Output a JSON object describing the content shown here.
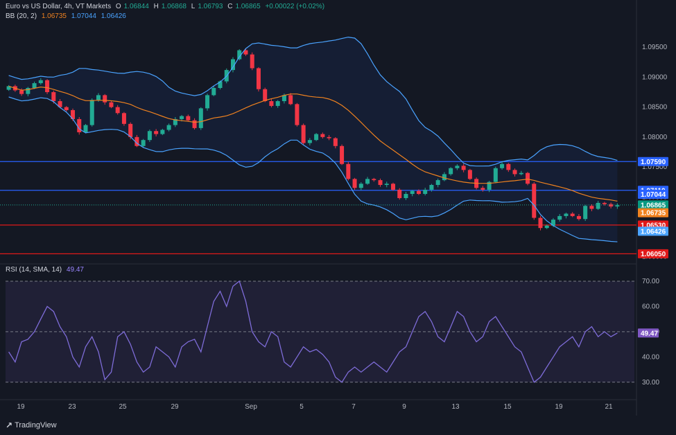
{
  "header": {
    "symbol": "Euro vs US Dollar, 4h, VT Markets",
    "open_label": "O",
    "open": "1.06844",
    "high_label": "H",
    "high": "1.06868",
    "low_label": "L",
    "low": "1.06793",
    "close_label": "C",
    "close": "1.06865",
    "change": "+0.00022 (+0.02%)"
  },
  "bb_legend": {
    "name": "BB (20, 2)",
    "mid": "1.06735",
    "upper": "1.07044",
    "lower": "1.06426"
  },
  "rsi_legend": {
    "name": "RSI (14, SMA, 14)",
    "value": "49.47"
  },
  "footer": {
    "brand": "TradingView"
  },
  "colors": {
    "up": "#22ab94",
    "down": "#f23645",
    "bb_mid": "#f0821f",
    "bb_band": "#4aa3ff",
    "rsi_line": "#7e6cd8",
    "hline_blue": "#2962ff",
    "hline_red": "#e01919"
  },
  "chart_data": [
    {
      "type": "candlestick",
      "title": "Euro vs US Dollar, 4h, VT Markets",
      "x_ticks": [
        "19",
        "23",
        "25",
        "29",
        "Sep",
        "5",
        "7",
        "9",
        "13",
        "15",
        "19",
        "21"
      ],
      "y_ticks": [
        "1.09500",
        "1.09000",
        "1.08500",
        "1.08000",
        "1.07500",
        "1.07000",
        "1.06500",
        "1.06000"
      ],
      "ylim": [
        1.0595,
        1.0985
      ],
      "close_path": [
        1.0885,
        1.0878,
        1.0872,
        1.0882,
        1.089,
        1.0895,
        1.0875,
        1.086,
        1.085,
        1.0845,
        1.083,
        1.0808,
        1.082,
        1.0862,
        1.087,
        1.0858,
        1.085,
        1.084,
        1.0822,
        1.08,
        1.0785,
        1.0795,
        1.081,
        1.0805,
        1.0812,
        1.082,
        1.083,
        1.0835,
        1.0828,
        1.0815,
        1.0848,
        1.087,
        1.0882,
        1.0893,
        1.0912,
        1.093,
        1.0945,
        1.0938,
        1.0915,
        1.088,
        1.086,
        1.0852,
        1.086,
        1.087,
        1.0855,
        1.082,
        1.079,
        1.0795,
        1.0805,
        1.08,
        1.0798,
        1.0785,
        1.0755,
        1.073,
        1.0715,
        1.0722,
        1.073,
        1.0728,
        1.072,
        1.0722,
        1.0712,
        1.0698,
        1.0705,
        1.071,
        1.0705,
        1.0712,
        1.072,
        1.0728,
        1.0738,
        1.0748,
        1.0752,
        1.0745,
        1.073,
        1.0715,
        1.0712,
        1.0725,
        1.0748,
        1.0755,
        1.0745,
        1.0738,
        1.074,
        1.0722,
        1.0665,
        1.0648,
        1.0652,
        1.0662,
        1.0668,
        1.0672,
        1.0668,
        1.0663,
        1.0685,
        1.068,
        1.069,
        1.0688,
        1.0684,
        1.0686
      ],
      "horizontal_levels": [
        {
          "price": "1.07590",
          "color": "hline_blue"
        },
        {
          "price": "1.07110",
          "color": "hline_blue"
        },
        {
          "price": "1.06530",
          "color": "hline_red"
        },
        {
          "price": "1.06050",
          "color": "hline_red"
        }
      ],
      "price_labels": [
        {
          "text": "1.07590",
          "price": 1.0759,
          "color": "#2962ff"
        },
        {
          "text": "1.07110",
          "price": 1.0711,
          "color": "#2962ff"
        },
        {
          "text": "1.07044",
          "price": 1.07044,
          "color": "#2962ff"
        },
        {
          "text": "1.06865",
          "price": 1.06865,
          "color": "#089981"
        },
        {
          "text": "1.06735",
          "price": 1.06735,
          "color": "#f0821f"
        },
        {
          "text": "1.06530",
          "price": 1.0653,
          "color": "#e01919"
        },
        {
          "text": "1.06426",
          "price": 1.06426,
          "color": "#4aa3ff"
        },
        {
          "text": "1.06050",
          "price": 1.0605,
          "color": "#e01919"
        }
      ]
    },
    {
      "type": "line",
      "title": "RSI (14, SMA, 14)",
      "y_ticks": [
        "70.00",
        "60.00",
        "50.00",
        "40.00",
        "30.00"
      ],
      "ylim": [
        25,
        73
      ],
      "guide_levels": [
        70,
        50,
        30
      ],
      "values": [
        42,
        38,
        46,
        47,
        50,
        55,
        60,
        58,
        52,
        48,
        40,
        36,
        44,
        48,
        42,
        31,
        34,
        48,
        50,
        45,
        38,
        34,
        36,
        44,
        42,
        40,
        36,
        44,
        46,
        47,
        42,
        52,
        62,
        66,
        60,
        68,
        70,
        62,
        50,
        46,
        44,
        50,
        48,
        38,
        36,
        40,
        44,
        42,
        43,
        41,
        38,
        32,
        30,
        34,
        36,
        34,
        36,
        38,
        36,
        34,
        38,
        42,
        44,
        50,
        56,
        58,
        54,
        48,
        46,
        52,
        58,
        56,
        50,
        46,
        48,
        54,
        56,
        52,
        48,
        44,
        42,
        36,
        30,
        32,
        36,
        40,
        44,
        46,
        48,
        44,
        50,
        52,
        48,
        50,
        48,
        49.47
      ],
      "value_label": "49.47"
    }
  ]
}
